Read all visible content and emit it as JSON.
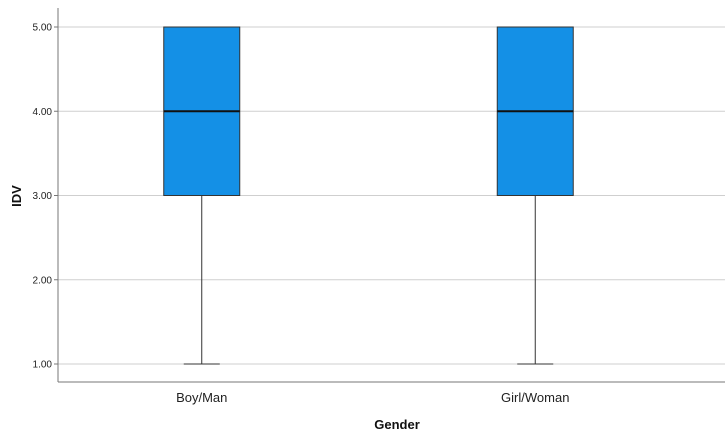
{
  "chart_data": {
    "type": "boxplot",
    "xlabel": "Gender",
    "ylabel": "IDV",
    "categories": [
      "Boy/Man",
      "Girl/Woman"
    ],
    "boxes": [
      {
        "category": "Boy/Man",
        "min": 1.0,
        "q1": 3.0,
        "median": 4.0,
        "q3": 5.0,
        "max": 5.0
      },
      {
        "category": "Girl/Woman",
        "min": 1.0,
        "q1": 3.0,
        "median": 4.0,
        "q3": 5.0,
        "max": 5.0
      }
    ],
    "yticks": [
      "1.00",
      "2.00",
      "3.00",
      "4.00",
      "5.00"
    ],
    "ylim": [
      0.8,
      5.2
    ],
    "grid": true,
    "box_color": "#1490E6"
  }
}
